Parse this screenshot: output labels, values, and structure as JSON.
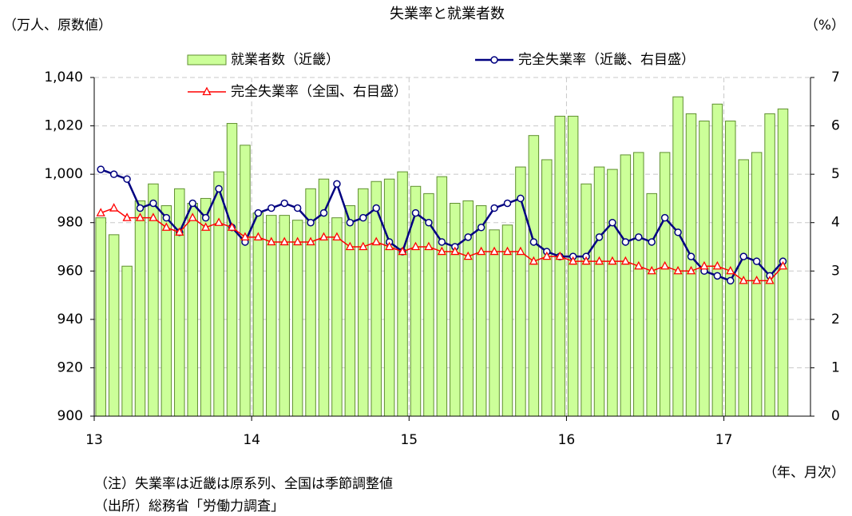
{
  "chart_data": {
    "type": "bar-line",
    "title": "失業率と就業者数",
    "y_label": "（万人、原数値）",
    "y2_label": "（%）",
    "x_label": "（年、月次）",
    "notes": [
      "（注）失業率は近畿は原系列、全国は季節調整値",
      "（出所）総務省「労働力調査」"
    ],
    "categories": [
      "13",
      null,
      null,
      null,
      null,
      null,
      null,
      null,
      null,
      null,
      null,
      null,
      "14",
      null,
      null,
      null,
      null,
      null,
      null,
      null,
      null,
      null,
      null,
      null,
      "15",
      null,
      null,
      null,
      null,
      null,
      null,
      null,
      null,
      null,
      null,
      null,
      "16",
      null,
      null,
      null,
      null,
      null,
      null,
      null,
      null,
      null,
      null,
      null,
      "17",
      null,
      null,
      null,
      null
    ],
    "series": [
      {
        "name": "就業者数（近畿）",
        "type": "bar",
        "color": "#ccff99",
        "edge_color": "#5f8f2f",
        "values": [
          982,
          975,
          962,
          989,
          996,
          987,
          994,
          988,
          990,
          1001,
          1021,
          1012,
          984,
          983,
          983,
          981,
          994,
          998,
          982,
          987,
          994,
          997,
          998,
          1001,
          995,
          992,
          999,
          988,
          989,
          987,
          977,
          979,
          1003,
          1016,
          1006,
          1024,
          1024,
          996,
          1003,
          1002,
          1008,
          1009,
          992,
          1009,
          1032,
          1025,
          1022,
          1029,
          1022,
          1006,
          1009,
          1025,
          1027
        ]
      },
      {
        "name": "完全失業率（近畿、右目盛）",
        "type": "line",
        "axis": "y2",
        "color": "#000080",
        "marker": "circle",
        "values": [
          5.1,
          5.0,
          4.9,
          4.3,
          4.4,
          4.1,
          3.8,
          4.4,
          4.1,
          4.7,
          3.9,
          3.6,
          4.2,
          4.3,
          4.4,
          4.3,
          4.0,
          4.2,
          4.8,
          4.0,
          4.1,
          4.3,
          3.6,
          3.4,
          4.2,
          4.0,
          3.6,
          3.5,
          3.7,
          3.9,
          4.3,
          4.4,
          4.5,
          3.6,
          3.4,
          3.3,
          3.3,
          3.3,
          3.7,
          4.0,
          3.6,
          3.7,
          3.6,
          4.1,
          3.8,
          3.3,
          3.0,
          2.9,
          2.8,
          3.3,
          3.2,
          2.9,
          3.2
        ]
      },
      {
        "name": "完全失業率（全国、右目盛）",
        "type": "line",
        "axis": "y2",
        "color": "#ff0000",
        "marker": "triangle",
        "values": [
          4.2,
          4.3,
          4.1,
          4.1,
          4.1,
          3.9,
          3.8,
          4.1,
          3.9,
          4.0,
          3.9,
          3.7,
          3.7,
          3.6,
          3.6,
          3.6,
          3.6,
          3.7,
          3.7,
          3.5,
          3.5,
          3.6,
          3.5,
          3.4,
          3.5,
          3.5,
          3.4,
          3.4,
          3.3,
          3.4,
          3.4,
          3.4,
          3.4,
          3.2,
          3.3,
          3.3,
          3.2,
          3.2,
          3.2,
          3.2,
          3.2,
          3.1,
          3.0,
          3.1,
          3.0,
          3.0,
          3.1,
          3.1,
          3.0,
          2.8,
          2.8,
          2.8,
          3.1
        ]
      }
    ],
    "ylim": [
      900,
      1040
    ],
    "yticks": [
      900,
      920,
      940,
      960,
      980,
      {
        "value": 1000,
        "label": "1,000"
      },
      {
        "value": 1020,
        "label": "1,020"
      },
      {
        "value": 1040,
        "label": "1,040"
      }
    ],
    "y2lim": [
      0,
      7
    ],
    "y2ticks": [
      0,
      1,
      2,
      3,
      4,
      5,
      6,
      7
    ],
    "grid": true
  }
}
